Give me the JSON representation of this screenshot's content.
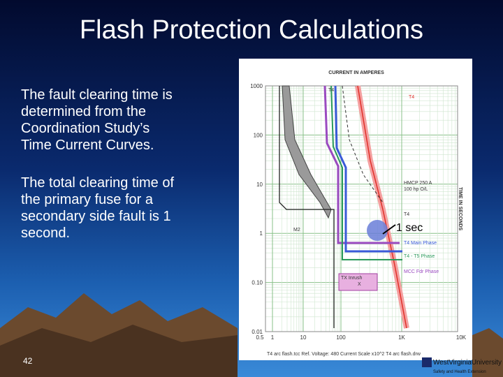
{
  "slide": {
    "title": "Flash Protection Calculations",
    "paragraphs": [
      [
        "The fault clearing time  is",
        "determined from the",
        "Coordination Study’s",
        "Time Current Curves."
      ],
      [
        "The total clearing time of",
        "the primary fuse for a",
        "secondary side fault is 1",
        "second."
      ]
    ],
    "page_number": "42"
  },
  "figure": {
    "x_axis_title": "CURRENT IN AMPERES",
    "y_axis_title": "TIME IN SECONDS",
    "y_tick_labels": [
      "1000",
      "100",
      "10",
      "1",
      "0.10",
      "0.01"
    ],
    "x_tick_labels": [
      "0.5",
      "1",
      "10",
      "100",
      "1K",
      "10K"
    ],
    "curve_labels": [
      "T4",
      "T4",
      "HMCP 250 A",
      "100 hp O/L",
      "T4",
      "M2",
      "T4 Main Phase",
      "T4 - T5 Phase",
      "MCC Fdr Phase",
      "TX Inrush",
      "X"
    ],
    "footer": "T4 arc flash.tcc   Ref. Voltage: 480   Current Scale x10^2   T4 arc flash.drw",
    "annotation": "1 sec"
  },
  "logo": {
    "name": "WestVirginiaUniversity",
    "subtitle": "Safety and Health Extension"
  }
}
